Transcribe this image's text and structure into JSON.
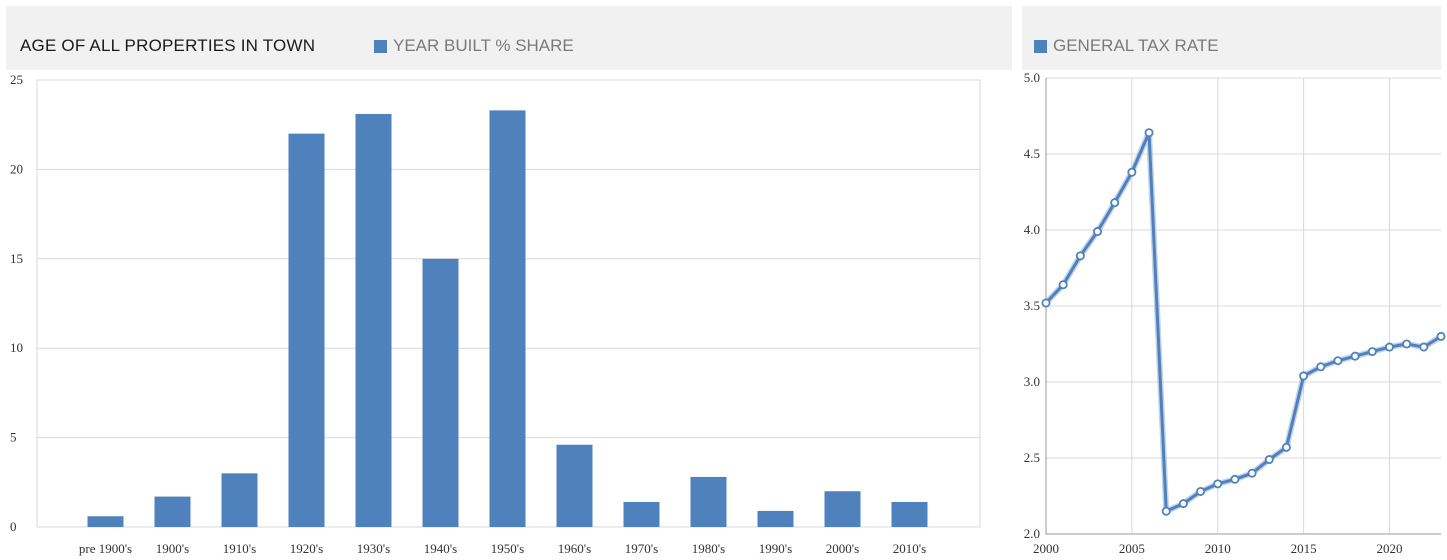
{
  "left_panel": {
    "title": "AGE OF ALL PROPERTIES IN TOWN",
    "legend_label": "YEAR BUILT % SHARE"
  },
  "right_panel": {
    "legend_label": "GENERAL TAX RATE"
  },
  "colors": {
    "bar": "#4f81bd",
    "line": "#4f81bd",
    "grid": "#d9d9d9",
    "header_bg": "#f1f1f1"
  },
  "chart_data": [
    {
      "type": "bar",
      "title": "AGE OF ALL PROPERTIES IN TOWN",
      "categories": [
        "pre 1900's",
        "1900's",
        "1910's",
        "1920's",
        "1930's",
        "1940's",
        "1950's",
        "1960's",
        "1970's",
        "1980's",
        "1990's",
        "2000's",
        "2010's"
      ],
      "series": [
        {
          "name": "YEAR BUILT % SHARE",
          "values": [
            0.6,
            1.7,
            3.0,
            22.0,
            23.1,
            15.0,
            23.3,
            4.6,
            1.4,
            2.8,
            0.9,
            2.0,
            1.4
          ]
        }
      ],
      "ylim": [
        0,
        25
      ],
      "yticks": [
        "0",
        "5",
        "10",
        "15",
        "20",
        "25"
      ],
      "grid": true,
      "legend_position": "top"
    },
    {
      "type": "line",
      "series": [
        {
          "name": "GENERAL TAX RATE",
          "x": [
            2000,
            2001,
            2002,
            2003,
            2004,
            2005,
            2006,
            2007,
            2008,
            2009,
            2010,
            2011,
            2012,
            2013,
            2014,
            2015,
            2016,
            2017,
            2018,
            2019,
            2020,
            2021,
            2022,
            2023
          ],
          "values": [
            3.52,
            3.64,
            3.83,
            3.99,
            4.18,
            4.38,
            4.64,
            2.15,
            2.2,
            2.28,
            2.33,
            2.36,
            2.4,
            2.49,
            2.57,
            3.04,
            3.1,
            3.14,
            3.17,
            3.2,
            3.23,
            3.25,
            3.23,
            3.3
          ]
        }
      ],
      "xlim": [
        2000,
        2023
      ],
      "xticks": [
        "2000",
        "2005",
        "2010",
        "2015",
        "2020"
      ],
      "ylim": [
        2.0,
        5.0
      ],
      "yticks": [
        "2.0",
        "2.5",
        "3.0",
        "3.5",
        "4.0",
        "4.5",
        "5.0"
      ],
      "grid": true,
      "legend_position": "top"
    }
  ]
}
